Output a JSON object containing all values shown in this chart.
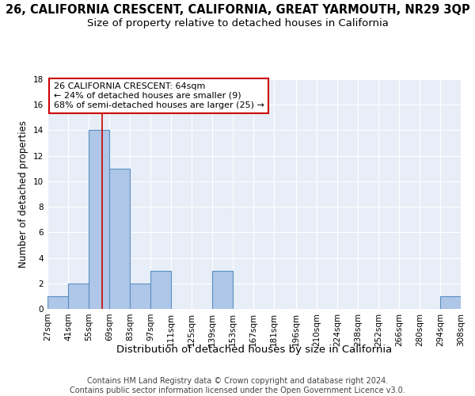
{
  "title": "26, CALIFORNIA CRESCENT, CALIFORNIA, GREAT YARMOUTH, NR29 3QP",
  "subtitle": "Size of property relative to detached houses in California",
  "xlabel": "Distribution of detached houses by size in California",
  "ylabel": "Number of detached properties",
  "footer_line1": "Contains HM Land Registry data © Crown copyright and database right 2024.",
  "footer_line2": "Contains public sector information licensed under the Open Government Licence v3.0.",
  "bin_edges": [
    27,
    41,
    55,
    69,
    83,
    97,
    111,
    125,
    139,
    153,
    167,
    181,
    196,
    210,
    224,
    238,
    252,
    266,
    280,
    294,
    308
  ],
  "bin_labels": [
    "27sqm",
    "41sqm",
    "55sqm",
    "69sqm",
    "83sqm",
    "97sqm",
    "111sqm",
    "125sqm",
    "139sqm",
    "153sqm",
    "167sqm",
    "181sqm",
    "196sqm",
    "210sqm",
    "224sqm",
    "238sqm",
    "252sqm",
    "266sqm",
    "280sqm",
    "294sqm",
    "308sqm"
  ],
  "counts": [
    1,
    2,
    14,
    11,
    2,
    3,
    0,
    0,
    3,
    0,
    0,
    0,
    0,
    0,
    0,
    0,
    0,
    0,
    0,
    1
  ],
  "bar_color": "#aec6e8",
  "bar_edgecolor": "#5a8fc2",
  "bar_linewidth": 0.8,
  "property_label": "26 CALIFORNIA CRESCENT: 64sqm",
  "smaller_pct": 24,
  "smaller_count": 9,
  "larger_pct": 68,
  "larger_count": 25,
  "vline_x": 64,
  "vline_color": "#cc0000",
  "annotation_box_edgecolor": "#cc0000",
  "annotation_box_facecolor": "#ffffff",
  "ylim": [
    0,
    18
  ],
  "yticks": [
    0,
    2,
    4,
    6,
    8,
    10,
    12,
    14,
    16,
    18
  ],
  "bg_color": "#e8eef7",
  "fig_bg_color": "#ffffff",
  "title_fontsize": 10.5,
  "subtitle_fontsize": 9.5,
  "xlabel_fontsize": 9.5,
  "ylabel_fontsize": 8.5,
  "tick_fontsize": 7.5,
  "annotation_fontsize": 8.0,
  "footer_fontsize": 7.0
}
